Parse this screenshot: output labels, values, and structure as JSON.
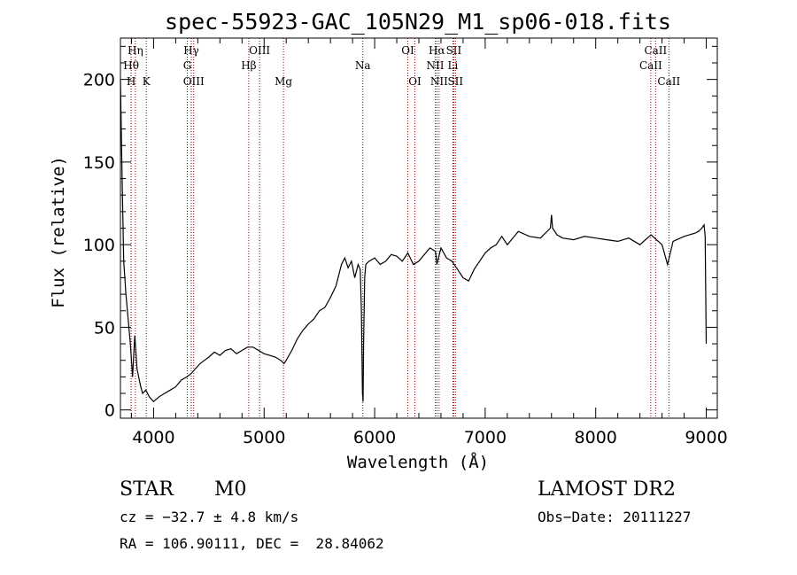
{
  "chart_data": {
    "type": "line",
    "title": "spec-55923-GAC_105N29_M1_sp06-018.fits",
    "xlabel": "Wavelength (Å)",
    "ylabel": "Flux (relative)",
    "xlim": [
      3700,
      9100
    ],
    "ylim": [
      -5,
      225
    ],
    "xticks": [
      4000,
      5000,
      6000,
      7000,
      8000,
      9000
    ],
    "yticks": [
      0,
      50,
      100,
      150,
      200
    ],
    "grid": false,
    "line_color": "#000000",
    "marker_color": "#8b0000",
    "series": [
      {
        "x": [
          3700,
          3715,
          3730,
          3750,
          3770,
          3790,
          3810,
          3830,
          3850,
          3880,
          3900,
          3930,
          3960,
          4000,
          4050,
          4100,
          4150,
          4200,
          4250,
          4300,
          4340,
          4380,
          4420,
          4460,
          4500,
          4550,
          4600,
          4650,
          4700,
          4750,
          4800,
          4850,
          4900,
          4950,
          5000,
          5050,
          5100,
          5150,
          5180,
          5200,
          5250,
          5300,
          5350,
          5400,
          5450,
          5500,
          5550,
          5600,
          5650,
          5700,
          5730,
          5760,
          5790,
          5820,
          5850,
          5870,
          5880,
          5890,
          5895,
          5900,
          5910,
          5920,
          5950,
          6000,
          6050,
          6100,
          6150,
          6200,
          6250,
          6300,
          6350,
          6400,
          6450,
          6500,
          6550,
          6563,
          6600,
          6650,
          6700,
          6750,
          6800,
          6850,
          6900,
          6950,
          7000,
          7050,
          7100,
          7150,
          7200,
          7300,
          7400,
          7500,
          7590,
          7600,
          7610,
          7650,
          7700,
          7800,
          7900,
          8000,
          8100,
          8200,
          8300,
          8400,
          8500,
          8600,
          8650,
          8700,
          8800,
          8900,
          8930,
          8960,
          8980,
          8990,
          9000
        ],
        "y": [
          200,
          140,
          90,
          70,
          55,
          40,
          20,
          45,
          25,
          15,
          10,
          12,
          8,
          5,
          8,
          10,
          12,
          14,
          18,
          20,
          22,
          25,
          28,
          30,
          32,
          35,
          33,
          36,
          37,
          34,
          36,
          38,
          38,
          36,
          34,
          33,
          32,
          30,
          28,
          30,
          36,
          43,
          48,
          52,
          55,
          60,
          62,
          68,
          75,
          88,
          92,
          86,
          90,
          80,
          88,
          85,
          60,
          10,
          5,
          40,
          80,
          88,
          90,
          92,
          88,
          90,
          94,
          93,
          90,
          95,
          88,
          90,
          94,
          98,
          96,
          88,
          98,
          92,
          90,
          85,
          80,
          78,
          85,
          90,
          95,
          98,
          100,
          105,
          100,
          108,
          105,
          104,
          110,
          118,
          110,
          106,
          104,
          103,
          105,
          104,
          103,
          102,
          104,
          100,
          106,
          100,
          88,
          102,
          105,
          107,
          108,
          110,
          112,
          105,
          40
        ]
      }
    ],
    "spectral_lines": [
      {
        "label": "Hη",
        "wave": 3835,
        "row": 0
      },
      {
        "label": "Hθ",
        "wave": 3797,
        "row": 1
      },
      {
        "label": "H",
        "wave": 3797,
        "row": 2
      },
      {
        "label": "K",
        "wave": 3934,
        "row": 2
      },
      {
        "label": "Hγ",
        "wave": 4341,
        "row": 0
      },
      {
        "label": "G",
        "wave": 4305,
        "row": 1
      },
      {
        "label": "OIII",
        "wave": 4363,
        "row": 2
      },
      {
        "label": "OIII",
        "wave": 4959,
        "row": 0
      },
      {
        "label": "Hβ",
        "wave": 4861,
        "row": 1
      },
      {
        "label": "Mg",
        "wave": 5175,
        "row": 2
      },
      {
        "label": "Na",
        "wave": 5893,
        "row": 1
      },
      {
        "label": "OI",
        "wave": 6300,
        "row": 0
      },
      {
        "label": "OI",
        "wave": 6364,
        "row": 2
      },
      {
        "label": "Hα",
        "wave": 6563,
        "row": 0
      },
      {
        "label": "SII",
        "wave": 6716,
        "row": 0
      },
      {
        "label": "NII",
        "wave": 6548,
        "row": 1
      },
      {
        "label": "Li",
        "wave": 6708,
        "row": 1
      },
      {
        "label": "NII",
        "wave": 6583,
        "row": 2
      },
      {
        "label": "SII",
        "wave": 6731,
        "row": 2
      },
      {
        "label": "CaII",
        "wave": 8542,
        "row": 0
      },
      {
        "label": "CaII",
        "wave": 8498,
        "row": 1
      },
      {
        "label": "CaII",
        "wave": 8662,
        "row": 2
      }
    ]
  },
  "info": {
    "object_class": "STAR",
    "subclass": "M0",
    "survey": "LAMOST DR2",
    "cz": "cz = −32.7 ± 4.8 km/s",
    "obs_date": "Obs−Date: 20111227",
    "coords": "RA = 106.90111, DEC =  28.84062"
  }
}
